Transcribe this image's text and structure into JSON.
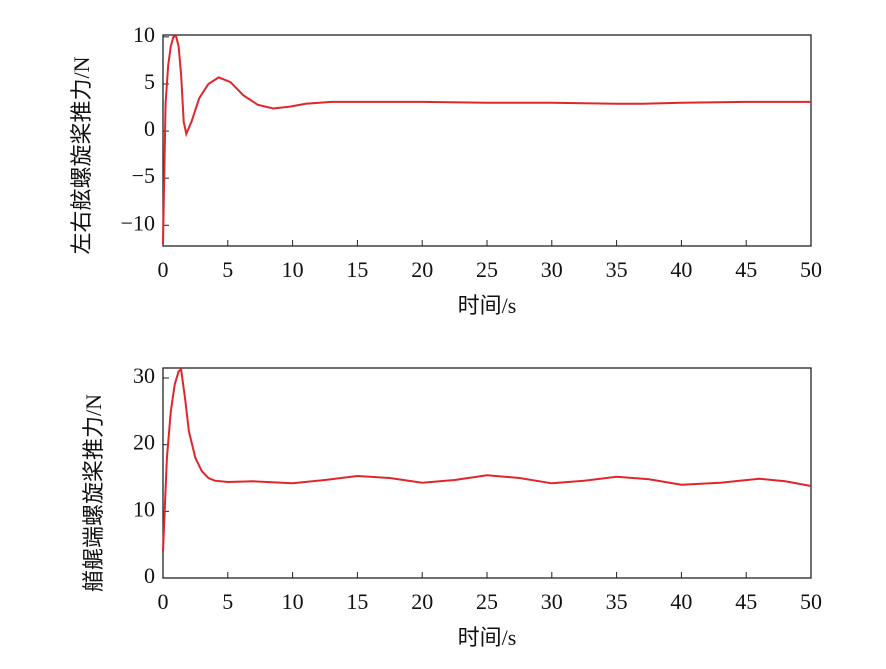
{
  "chart_data": [
    {
      "type": "line",
      "y_label": "左右舷螺旋桨推力/N",
      "x_label": "时间/s",
      "xlim": [
        0,
        50
      ],
      "xticks": [
        0,
        5,
        10,
        15,
        20,
        25,
        30,
        35,
        40,
        45,
        50
      ],
      "ylim": [
        -12.2,
        10.2
      ],
      "yticks": [
        {
          "value": -10,
          "label": "−10"
        },
        {
          "value": -5,
          "label": "−5"
        },
        0,
        5,
        10
      ],
      "x": [
        0,
        0.2,
        0.4,
        0.6,
        0.8,
        1.0,
        1.2,
        1.4,
        1.6,
        1.8,
        2.2,
        2.8,
        3.5,
        4.3,
        5.2,
        6.2,
        7.3,
        8.5,
        9.8,
        11,
        13,
        15,
        20,
        25,
        30,
        35,
        37,
        40,
        45,
        50
      ],
      "series": [
        {
          "name": "左右舷",
          "color": "#e0262b",
          "values": [
            -12,
            3,
            7,
            9,
            10,
            10.1,
            9,
            6,
            1,
            -0.3,
            1,
            3.5,
            5,
            5.7,
            5.2,
            3.8,
            2.8,
            2.4,
            2.6,
            2.9,
            3.1,
            3.1,
            3.1,
            3.0,
            3.0,
            2.9,
            2.9,
            3.0,
            3.1,
            3.1
          ]
        }
      ]
    },
    {
      "type": "line",
      "y_label": "艏艉端螺旋桨推力/N",
      "x_label": "时间/s",
      "xlim": [
        0,
        50
      ],
      "xticks": [
        0,
        5,
        10,
        15,
        20,
        25,
        30,
        35,
        40,
        45,
        50
      ],
      "ylim": [
        0,
        31.5
      ],
      "yticks": [
        0,
        10,
        20,
        30
      ],
      "x": [
        0,
        0.3,
        0.6,
        0.9,
        1.2,
        1.4,
        1.7,
        2.0,
        2.5,
        3.0,
        3.5,
        4.0,
        5,
        7,
        10,
        12.5,
        15,
        17.5,
        20,
        22.5,
        25,
        27.5,
        30,
        32.5,
        35,
        37.5,
        40,
        43,
        46,
        48,
        50
      ],
      "series": [
        {
          "name": "艏艉端",
          "color": "#e0262b",
          "values": [
            4,
            18,
            25,
            29,
            31,
            31.3,
            27,
            22,
            18,
            16,
            15,
            14.6,
            14.4,
            14.5,
            14.2,
            14.7,
            15.3,
            15,
            14.3,
            14.7,
            15.4,
            15,
            14.2,
            14.6,
            15.2,
            14.8,
            14,
            14.3,
            14.9,
            14.5,
            13.8
          ]
        }
      ]
    }
  ]
}
